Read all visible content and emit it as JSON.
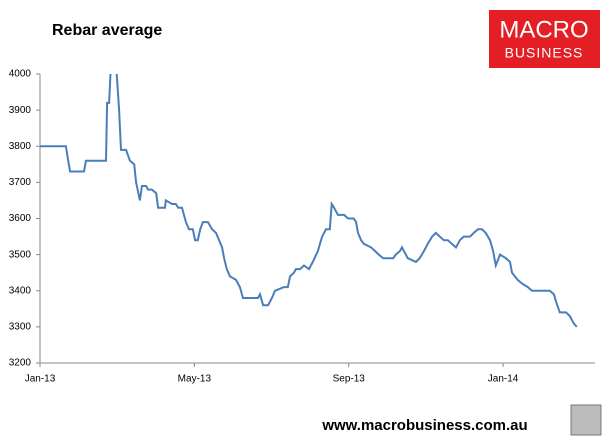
{
  "chart_data": {
    "type": "line",
    "title": "Rebar average",
    "logo": [
      "MACRO",
      "BUSINESS"
    ],
    "footer": "www.macrobusiness.com.au",
    "x": [
      0,
      0.67,
      0.73,
      0.78,
      1.14,
      1.19,
      1.71,
      1.74,
      1.79,
      1.84,
      1.97,
      2.05,
      2.1,
      2.23,
      2.33,
      2.44,
      2.49,
      2.59,
      2.64,
      2.75,
      2.8,
      2.9,
      3.01,
      3.06,
      3.24,
      3.26,
      3.42,
      3.52,
      3.58,
      3.68,
      3.78,
      3.86,
      3.96,
      4.02,
      4.09,
      4.15,
      4.22,
      4.35,
      4.46,
      4.56,
      4.72,
      4.77,
      4.84,
      4.92,
      5.08,
      5.18,
      5.26,
      5.65,
      5.7,
      5.78,
      5.91,
      6.01,
      6.09,
      6.32,
      6.42,
      6.48,
      6.58,
      6.63,
      6.74,
      6.84,
      6.97,
      7.07,
      7.2,
      7.31,
      7.41,
      7.51,
      7.56,
      7.62,
      7.72,
      7.88,
      7.98,
      8.13,
      8.19,
      8.24,
      8.32,
      8.39,
      8.58,
      8.68,
      8.78,
      8.89,
      9.15,
      9.22,
      9.33,
      9.38,
      9.43,
      9.53,
      9.74,
      9.84,
      9.95,
      10.05,
      10.16,
      10.26,
      10.36,
      10.47,
      10.57,
      10.67,
      10.78,
      10.88,
      10.98,
      11.14,
      11.24,
      11.35,
      11.45,
      11.55,
      11.66,
      11.74,
      11.81,
      11.92,
      12.07,
      12.18,
      12.23,
      12.38,
      12.49,
      12.64,
      12.75,
      12.95,
      13.21,
      13.32,
      13.37,
      13.47,
      13.63,
      13.73,
      13.83,
      13.91
    ],
    "series": [
      {
        "name": "Rebar average",
        "color": "#4a7ebb",
        "values": [
          3800,
          3800,
          3760,
          3730,
          3730,
          3760,
          3760,
          3920,
          3920,
          4030,
          4030,
          3900,
          3790,
          3790,
          3760,
          3750,
          3700,
          3650,
          3690,
          3690,
          3680,
          3680,
          3670,
          3630,
          3630,
          3650,
          3640,
          3640,
          3630,
          3630,
          3590,
          3570,
          3570,
          3540,
          3540,
          3570,
          3590,
          3590,
          3570,
          3560,
          3520,
          3490,
          3460,
          3440,
          3430,
          3410,
          3380,
          3380,
          3390,
          3360,
          3360,
          3380,
          3400,
          3410,
          3410,
          3440,
          3450,
          3460,
          3460,
          3470,
          3460,
          3480,
          3510,
          3550,
          3570,
          3570,
          3640,
          3630,
          3610,
          3610,
          3600,
          3600,
          3590,
          3560,
          3540,
          3530,
          3520,
          3510,
          3500,
          3490,
          3490,
          3500,
          3510,
          3520,
          3510,
          3490,
          3480,
          3490,
          3510,
          3530,
          3550,
          3560,
          3550,
          3540,
          3540,
          3530,
          3520,
          3540,
          3550,
          3550,
          3560,
          3570,
          3570,
          3560,
          3540,
          3510,
          3470,
          3500,
          3490,
          3480,
          3450,
          3430,
          3420,
          3410,
          3400,
          3400,
          3400,
          3390,
          3370,
          3340,
          3340,
          3330,
          3310,
          3300
        ]
      }
    ],
    "xlim": [
      0,
      14.33
    ],
    "xticks": [
      {
        "value": 0,
        "label": "Jan-13"
      },
      {
        "value": 4,
        "label": "May-13"
      },
      {
        "value": 8,
        "label": "Sep-13"
      },
      {
        "value": 12,
        "label": "Jan-14"
      }
    ],
    "ylim": [
      3200,
      4000
    ],
    "yticks": [
      3200,
      3300,
      3400,
      3500,
      3600,
      3700,
      3800,
      3900,
      4000
    ],
    "grid": false
  }
}
